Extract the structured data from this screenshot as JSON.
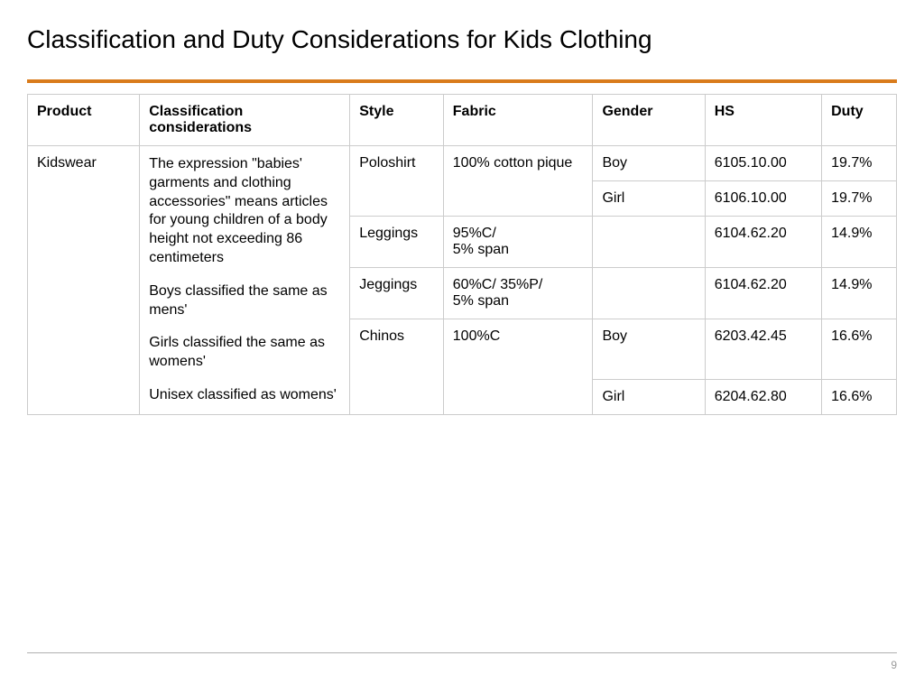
{
  "title": "Classification and Duty Considerations for Kids Clothing",
  "accent_color": "#d97b1b",
  "page_number": "9",
  "table": {
    "columns": {
      "product": "Product",
      "considerations": "Classification considerations",
      "style": "Style",
      "fabric": "Fabric",
      "gender": "Gender",
      "hs": "HS",
      "duty": "Duty"
    },
    "product": "Kidswear",
    "considerations": {
      "p1": "The expression \"babies' garments and clothing accessories\" means articles for young children of a body height not exceeding 86 centimeters",
      "p2": "Boys classified the same as mens'",
      "p3": "Girls classified the same as womens'",
      "p4": "Unisex classified as womens'"
    },
    "rows": {
      "r1": {
        "style": "Poloshirt",
        "fabric": "100% cotton pique",
        "gender": "Boy",
        "hs": "6105.10.00",
        "duty": "19.7%"
      },
      "r2": {
        "style": "",
        "fabric": "",
        "gender": "Girl",
        "hs": "6106.10.00",
        "duty": "19.7%"
      },
      "r3": {
        "style": "Leggings",
        "fabric": "95%C/ 5% span",
        "gender": "",
        "hs": "6104.62.20",
        "duty": "14.9%"
      },
      "r4": {
        "style": "Jeggings",
        "fabric": "60%C/ 35%P/ 5% span",
        "gender": "",
        "hs": "6104.62.20",
        "duty": "14.9%"
      },
      "r5": {
        "style": "Chinos",
        "fabric": "100%C",
        "gender": "Boy",
        "hs": "6203.42.45",
        "duty": "16.6%"
      },
      "r6": {
        "style": "",
        "fabric": "",
        "gender": "Girl",
        "hs": "6204.62.80",
        "duty": "16.6%"
      }
    }
  }
}
